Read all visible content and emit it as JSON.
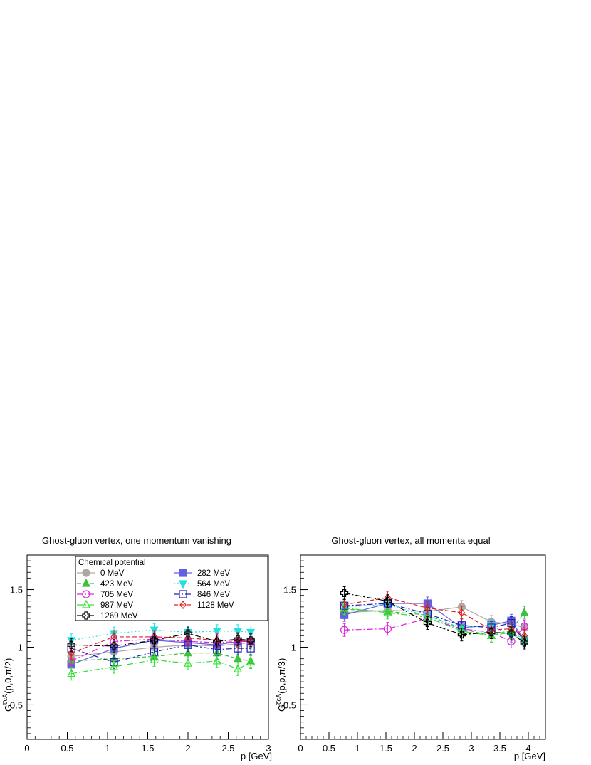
{
  "chart_data": [
    {
      "type": "line",
      "title": "Ghost-gluon vertex, one momentum vanishing",
      "xlabel": "p [GeV]",
      "ylabel_main": "G",
      "ylabel_sup": "c̅cA",
      "ylabel_args": "(p,0,π/2)",
      "xlim": [
        0,
        3
      ],
      "ylim": [
        0.2,
        1.8
      ],
      "xticks": [
        0,
        0.5,
        1,
        1.5,
        2,
        2.5,
        3
      ],
      "xtick_labels": [
        "0",
        "0.5",
        "1",
        "1.5",
        "2",
        "2.5",
        "3"
      ],
      "yticks": [
        0.5,
        1,
        1.5
      ],
      "ytick_labels": [
        "0.5",
        "1",
        "1.5"
      ],
      "legend": {
        "title": "Chemical potential",
        "position": "top"
      },
      "series": [
        {
          "name": "0 MeV",
          "color": "#b0a8a0",
          "dash": "",
          "marker": "circle-filled",
          "x": [
            0.55,
            1.08,
            1.58,
            2.0,
            2.36,
            2.62,
            2.78
          ],
          "y": [
            0.92,
            0.96,
            1.0,
            1.02,
            1.01,
            1.03,
            1.04
          ]
        },
        {
          "name": "282 MeV",
          "color": "#6060e0",
          "dash": "",
          "marker": "square-filled",
          "x": [
            0.55,
            1.08,
            1.58,
            2.0,
            2.36,
            2.62,
            2.78
          ],
          "y": [
            0.85,
            0.99,
            1.06,
            1.04,
            1.02,
            1.05,
            1.05
          ]
        },
        {
          "name": "423 MeV",
          "color": "#40c040",
          "dash": "6,3",
          "marker": "triangle-up-filled",
          "x": [
            0.55,
            1.08,
            1.58,
            2.0,
            2.36,
            2.62,
            2.78
          ],
          "y": [
            0.88,
            0.9,
            0.92,
            0.95,
            0.95,
            0.9,
            0.88
          ]
        },
        {
          "name": "564 MeV",
          "color": "#20e0e0",
          "dash": "2,3",
          "marker": "triangle-down-filled",
          "x": [
            0.55,
            1.08,
            1.58,
            2.0,
            2.36,
            2.62,
            2.78
          ],
          "y": [
            1.06,
            1.12,
            1.15,
            1.13,
            1.14,
            1.14,
            1.13
          ]
        },
        {
          "name": "705 MeV",
          "color": "#e020e0",
          "dash": "8,3,2,3",
          "marker": "circle-open",
          "x": [
            0.55,
            1.08,
            1.58,
            2.0,
            2.36,
            2.62,
            2.78
          ],
          "y": [
            0.88,
            1.05,
            1.07,
            1.05,
            1.04,
            1.05,
            1.05
          ]
        },
        {
          "name": "846 MeV",
          "color": "#2020b0",
          "dash": "8,3,2,3",
          "marker": "square-open",
          "x": [
            0.55,
            1.08,
            1.58,
            2.0,
            2.36,
            2.62,
            2.78
          ],
          "y": [
            0.99,
            0.87,
            0.96,
            1.02,
            0.98,
            0.99,
            0.99
          ]
        },
        {
          "name": "987 MeV",
          "color": "#30e030",
          "dash": "8,3,2,3",
          "marker": "triangle-up-open",
          "x": [
            0.55,
            1.08,
            1.58,
            2.0,
            2.36,
            2.62,
            2.78
          ],
          "y": [
            0.77,
            0.83,
            0.89,
            0.86,
            0.88,
            0.81,
            0.87
          ]
        },
        {
          "name": "1128 MeV",
          "color": "#e02020",
          "dash": "6,3",
          "marker": "diamond-open",
          "x": [
            0.55,
            1.08,
            1.58,
            2.0,
            2.36,
            2.62,
            2.78
          ],
          "y": [
            0.95,
            1.09,
            1.09,
            1.08,
            1.06,
            1.06,
            1.05
          ]
        },
        {
          "name": "1269 MeV",
          "color": "#000000",
          "dash": "8,3,2,3",
          "marker": "cross-open",
          "x": [
            0.55,
            1.08,
            1.58,
            2.0,
            2.36,
            2.62,
            2.78
          ],
          "y": [
            1.02,
            1.01,
            1.06,
            1.12,
            1.05,
            1.07,
            1.06
          ]
        }
      ]
    },
    {
      "type": "line",
      "title": "Ghost-gluon vertex, all momenta equal",
      "xlabel": "p [GeV]",
      "ylabel_main": "G",
      "ylabel_sup": "c̅cA",
      "ylabel_args": "(p,p,π/3)",
      "xlim": [
        0,
        4.3
      ],
      "ylim": [
        0.2,
        1.8
      ],
      "xticks": [
        0,
        0.5,
        1,
        1.5,
        2,
        2.5,
        3,
        3.5,
        4
      ],
      "xtick_labels": [
        "0",
        "0.5",
        "1",
        "1.5",
        "2",
        "2.5",
        "3",
        "3.5",
        "4"
      ],
      "yticks": [
        0.5,
        1,
        1.5
      ],
      "ytick_labels": [
        "0.5",
        "1",
        "1.5"
      ],
      "series": [
        {
          "name": "0 MeV",
          "color": "#b0a8a0",
          "dash": "",
          "marker": "circle-filled",
          "x": [
            0.77,
            1.53,
            2.23,
            2.83,
            3.35,
            3.7,
            3.93
          ],
          "y": [
            1.3,
            1.32,
            1.31,
            1.35,
            1.22,
            1.2,
            1.17
          ]
        },
        {
          "name": "282 MeV",
          "color": "#6060e0",
          "dash": "",
          "marker": "square-filled",
          "x": [
            0.77,
            1.53,
            2.23,
            2.83,
            3.35,
            3.7,
            3.93
          ],
          "y": [
            1.28,
            1.38,
            1.38,
            1.17,
            1.19,
            1.23,
            1.06
          ]
        },
        {
          "name": "423 MeV",
          "color": "#40c040",
          "dash": "6,3",
          "marker": "triangle-up-filled",
          "x": [
            0.77,
            1.53,
            2.23,
            2.83,
            3.35,
            3.7,
            3.93
          ],
          "y": [
            1.33,
            1.31,
            1.28,
            1.16,
            1.1,
            1.15,
            1.3
          ]
        },
        {
          "name": "564 MeV",
          "color": "#20e0e0",
          "dash": "2,3",
          "marker": "triangle-down-filled",
          "x": [
            0.77,
            1.53,
            2.23,
            2.83,
            3.35,
            3.7,
            3.93
          ],
          "y": [
            1.35,
            1.37,
            1.27,
            1.17,
            1.19,
            1.1,
            1.07
          ]
        },
        {
          "name": "705 MeV",
          "color": "#e020e0",
          "dash": "8,3,2,3",
          "marker": "circle-open",
          "x": [
            0.77,
            1.53,
            2.23,
            2.83,
            3.35,
            3.7,
            3.93
          ],
          "y": [
            1.15,
            1.16,
            1.25,
            1.16,
            1.13,
            1.05,
            1.18
          ]
        },
        {
          "name": "846 MeV",
          "color": "#2020b0",
          "dash": "8,3,2,3",
          "marker": "square-open",
          "x": [
            0.77,
            1.53,
            2.23,
            2.83,
            3.35,
            3.7,
            3.93
          ],
          "y": [
            1.36,
            1.38,
            1.29,
            1.19,
            1.17,
            1.21,
            1.05
          ]
        },
        {
          "name": "987 MeV",
          "color": "#30e030",
          "dash": "8,3,2,3",
          "marker": "triangle-up-open",
          "x": [
            0.77,
            1.53,
            2.23,
            2.83,
            3.35,
            3.7,
            3.93
          ],
          "y": [
            1.34,
            1.3,
            1.26,
            1.14,
            1.1,
            1.13,
            1.07
          ]
        },
        {
          "name": "1128 MeV",
          "color": "#e02020",
          "dash": "6,3",
          "marker": "diamond-open",
          "x": [
            0.77,
            1.53,
            2.23,
            2.83,
            3.35,
            3.7,
            3.93
          ],
          "y": [
            1.37,
            1.43,
            1.34,
            1.3,
            1.15,
            1.16,
            1.1
          ]
        },
        {
          "name": "1269 MeV",
          "color": "#000000",
          "dash": "8,3,2,3",
          "marker": "cross-open",
          "x": [
            0.77,
            1.53,
            2.23,
            2.83,
            3.35,
            3.7,
            3.93
          ],
          "y": [
            1.47,
            1.4,
            1.21,
            1.11,
            1.13,
            1.12,
            1.04
          ]
        }
      ]
    }
  ]
}
